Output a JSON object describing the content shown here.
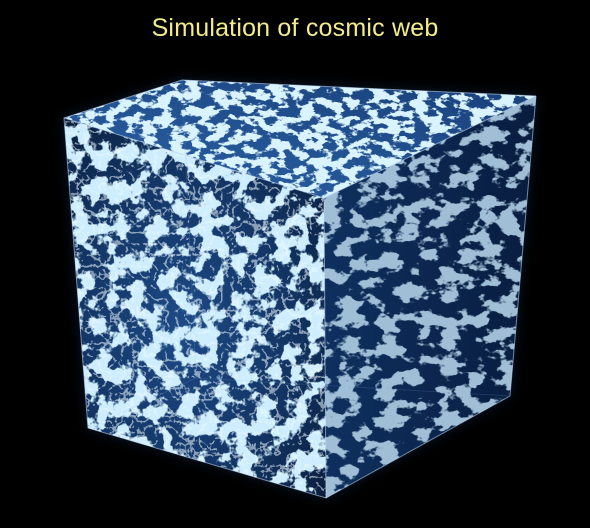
{
  "title": "Simulation of cosmic web",
  "colors": {
    "background": "#000000",
    "title_text": "#f4ec8c",
    "filament": "#9fd8ff",
    "filament_bright": "#e6f7ff",
    "void": "#0a1a3a",
    "cube_edge": "#cfe3ff"
  },
  "image": {
    "subject": "cosmic-web-cube"
  }
}
